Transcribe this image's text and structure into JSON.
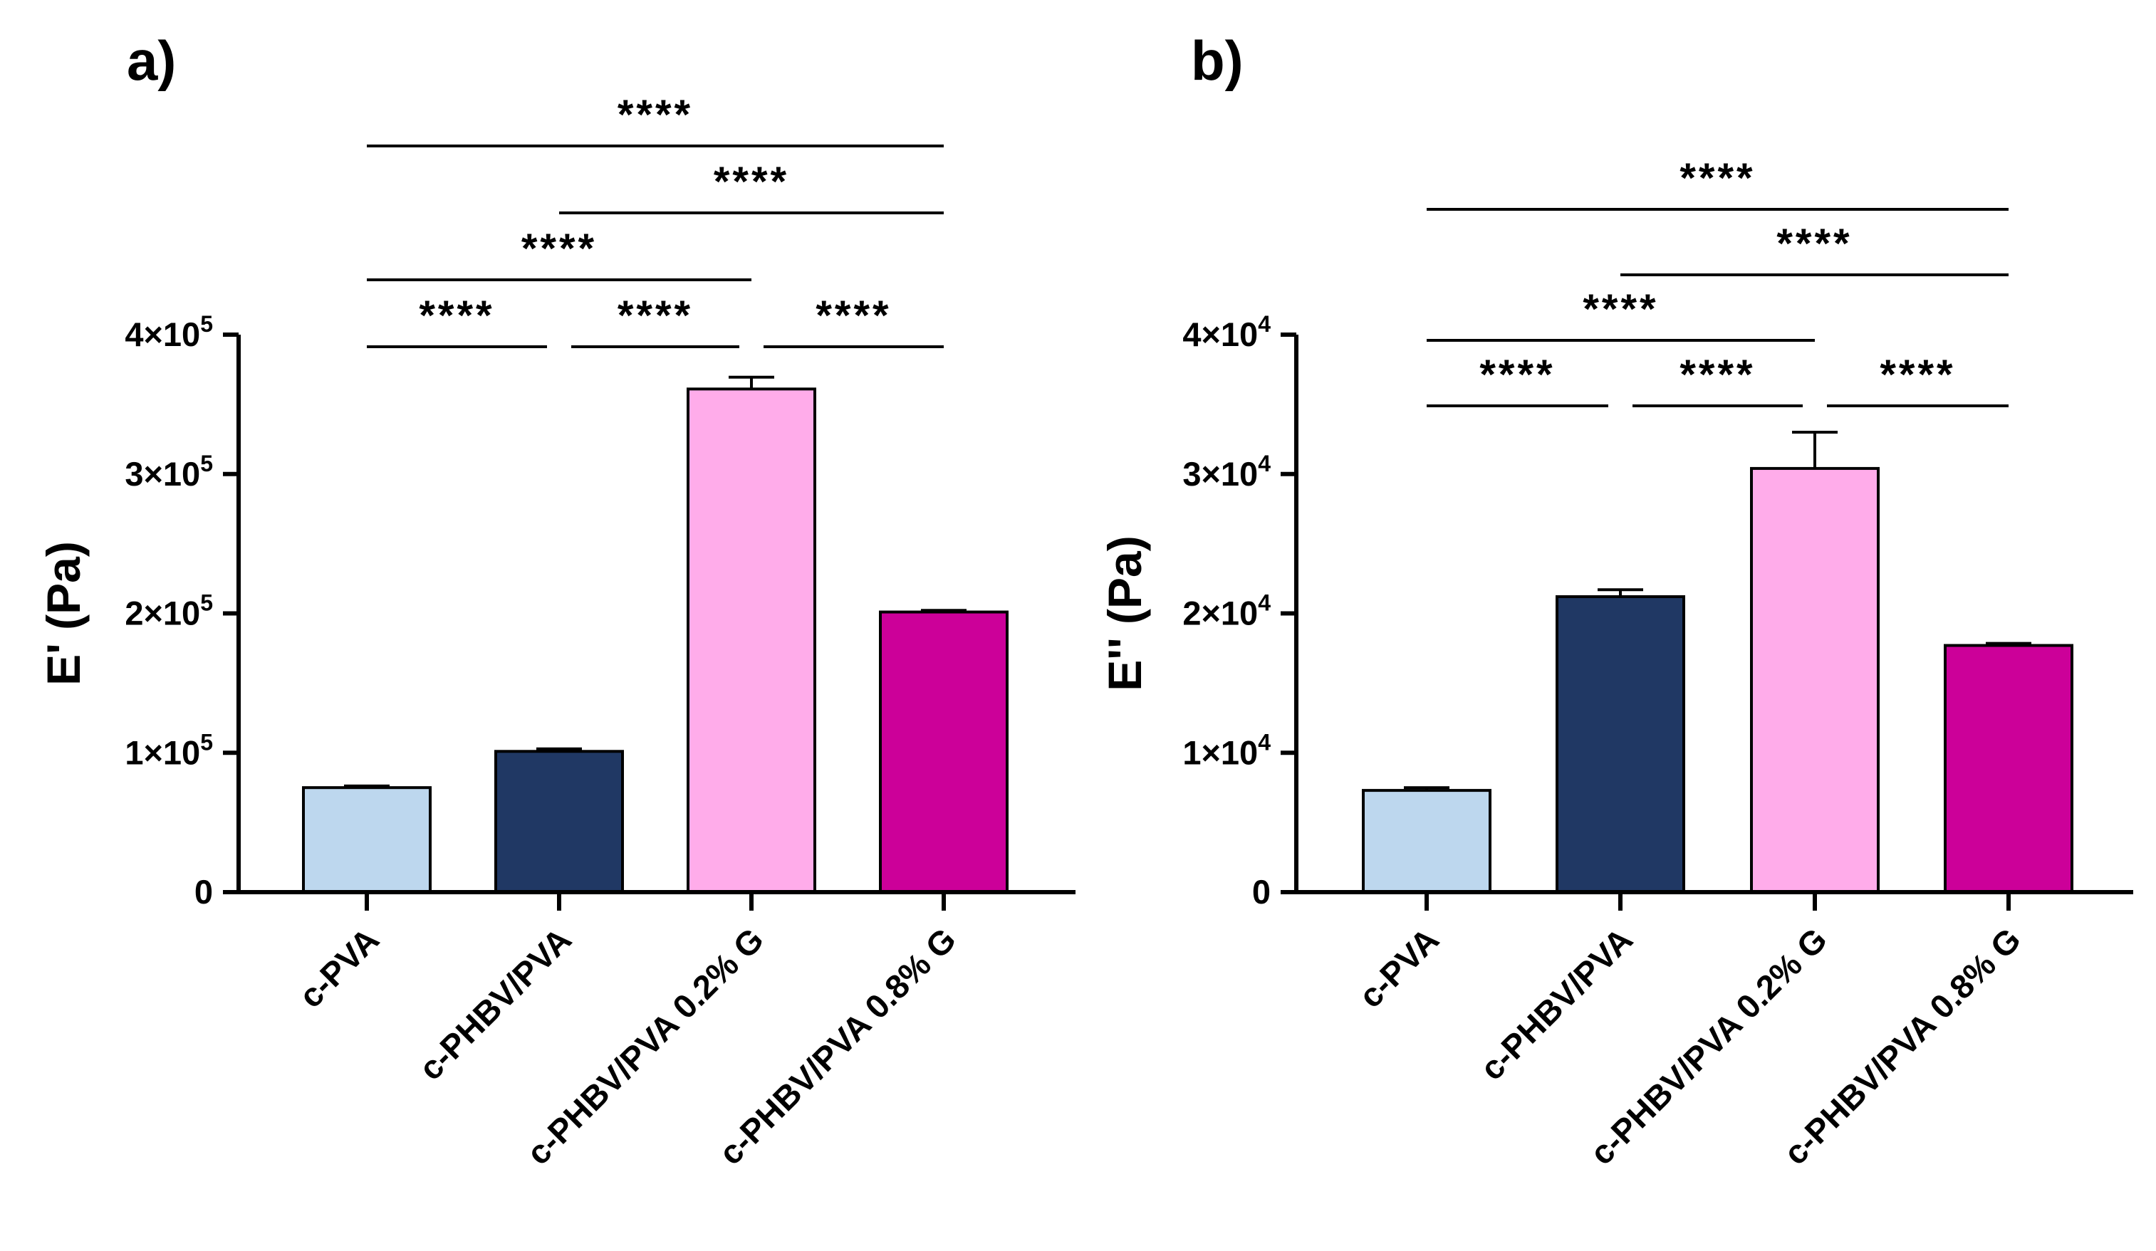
{
  "chart_data": [
    {
      "type": "bar",
      "panel": "a)",
      "ylabel": "E' (Pa)",
      "xlabel": "",
      "ylim": [
        0,
        400000
      ],
      "yticks": [
        0,
        100000,
        200000,
        300000,
        400000
      ],
      "ytick_labels": [
        "0",
        "1×10",
        "2×10",
        "3×10",
        "4×10"
      ],
      "ytick_exponents": [
        "",
        "5",
        "5",
        "5",
        "5"
      ],
      "categories": [
        "c-PVA",
        "c-PHBV/PVA",
        "c-PHBV/PVA 0.2% G",
        "c-PHBV/PVA 0.8% G"
      ],
      "values": [
        75000,
        101000,
        361000,
        201000
      ],
      "errors": [
        1200,
        1800,
        8500,
        1200
      ],
      "colors": [
        "#bdd7ee",
        "#203864",
        "#ffacea",
        "#cc0099"
      ],
      "significance": [
        {
          "from": 0,
          "to": 1,
          "label": "****",
          "level": 0
        },
        {
          "from": 1,
          "to": 2,
          "label": "****",
          "level": 0
        },
        {
          "from": 2,
          "to": 3,
          "label": "****",
          "level": 0
        },
        {
          "from": 0,
          "to": 2,
          "label": "****",
          "level": 1
        },
        {
          "from": 1,
          "to": 3,
          "label": "****",
          "level": 2
        },
        {
          "from": 0,
          "to": 3,
          "label": "****",
          "level": 3
        }
      ]
    },
    {
      "type": "bar",
      "panel": "b)",
      "ylabel": "E'' (Pa)",
      "xlabel": "",
      "ylim": [
        0,
        40000
      ],
      "yticks": [
        0,
        10000,
        20000,
        30000,
        40000
      ],
      "ytick_labels": [
        "0",
        "1×10",
        "2×10",
        "3×10",
        "4×10"
      ],
      "ytick_exponents": [
        "",
        "4",
        "4",
        "4",
        "4"
      ],
      "categories": [
        "c-PVA",
        "c-PHBV/PVA",
        "c-PHBV/PVA 0.2% G",
        "c-PHBV/PVA 0.8% G"
      ],
      "values": [
        7300,
        21200,
        30400,
        17700
      ],
      "errors": [
        200,
        500,
        2600,
        150
      ],
      "colors": [
        "#bdd7ee",
        "#203864",
        "#ffacea",
        "#cc0099"
      ],
      "significance": [
        {
          "from": 0,
          "to": 1,
          "label": "****",
          "level": 0
        },
        {
          "from": 1,
          "to": 2,
          "label": "****",
          "level": 0
        },
        {
          "from": 2,
          "to": 3,
          "label": "****",
          "level": 0
        },
        {
          "from": 0,
          "to": 2,
          "label": "****",
          "level": 1
        },
        {
          "from": 1,
          "to": 3,
          "label": "****",
          "level": 2
        },
        {
          "from": 0,
          "to": 3,
          "label": "****",
          "level": 3
        }
      ]
    }
  ]
}
